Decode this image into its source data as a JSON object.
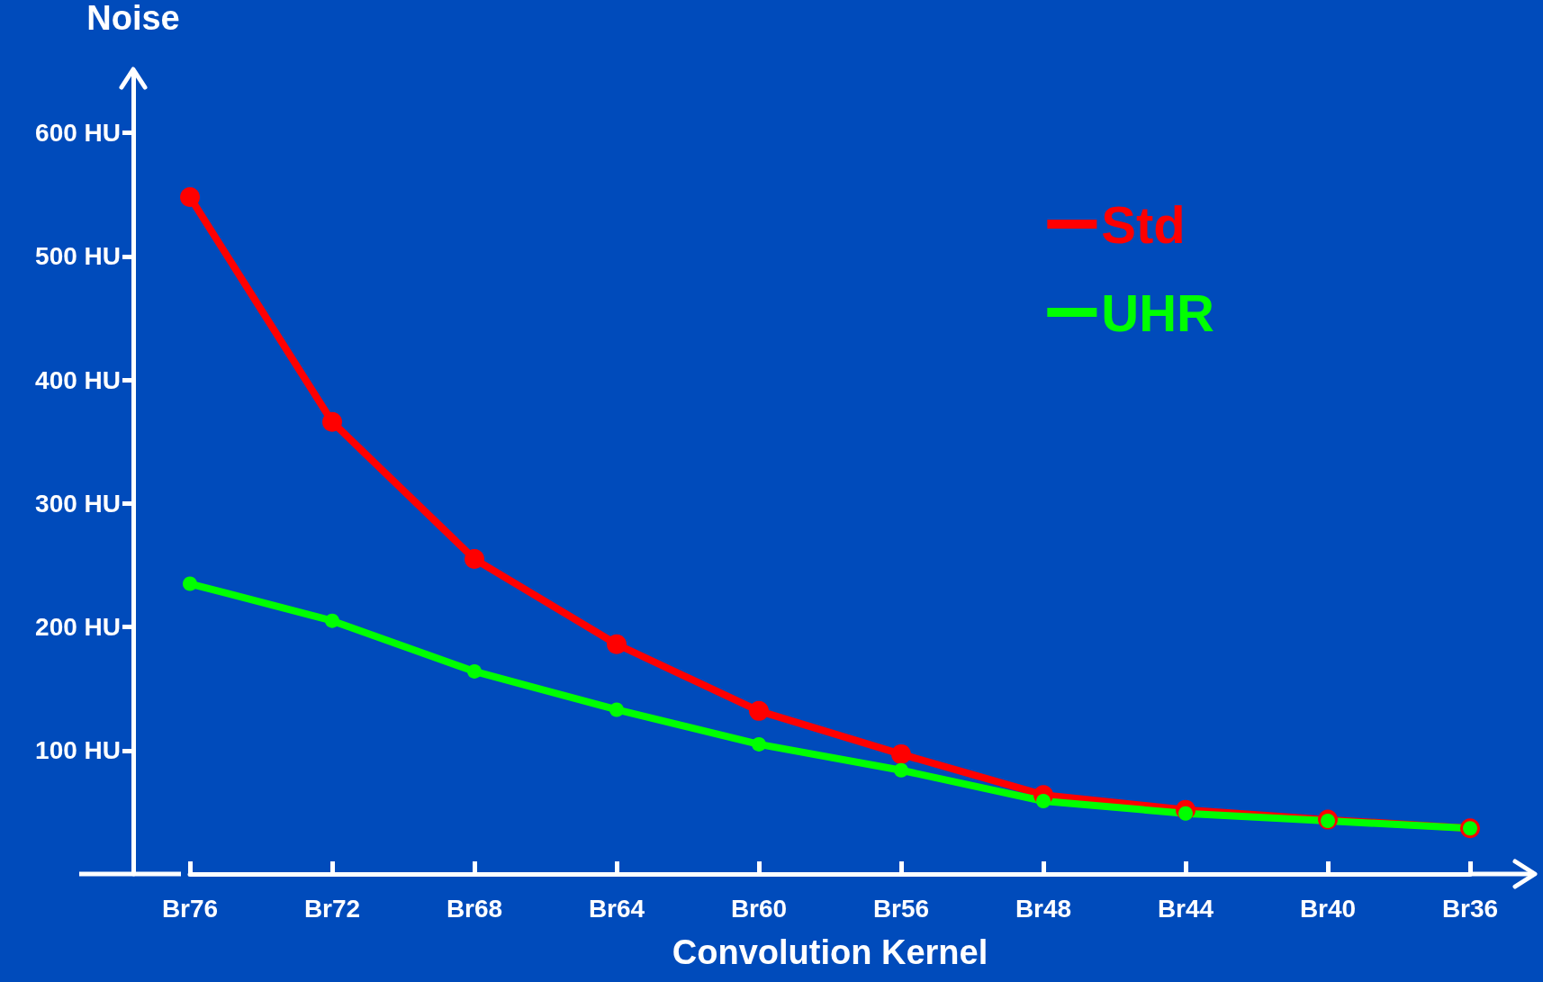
{
  "chart_data": {
    "type": "line",
    "ylabel": "Noise",
    "xlabel": "Convolution Kernel",
    "categories": [
      "Br76",
      "Br72",
      "Br68",
      "Br64",
      "Br60",
      "Br56",
      "Br48",
      "Br44",
      "Br40",
      "Br36"
    ],
    "series": [
      {
        "name": "Std",
        "color": "#ff0000",
        "values": [
          548,
          366,
          255,
          186,
          132,
          97,
          64,
          52,
          44,
          37
        ]
      },
      {
        "name": "UHR",
        "color": "#00ff00",
        "values": [
          235,
          205,
          164,
          133,
          105,
          84,
          59,
          49,
          43,
          37
        ]
      }
    ],
    "ylim": [
      0,
      650
    ],
    "yticks": [
      {
        "value": 100,
        "label": "100 HU"
      },
      {
        "value": 200,
        "label": "200 HU"
      },
      {
        "value": 300,
        "label": "300 HU"
      },
      {
        "value": 400,
        "label": "400 HU"
      },
      {
        "value": 500,
        "label": "500 HU"
      },
      {
        "value": 600,
        "label": "600 HU"
      }
    ],
    "grid": false,
    "legend": "top right",
    "marker": "circle",
    "line_style": "solid"
  }
}
